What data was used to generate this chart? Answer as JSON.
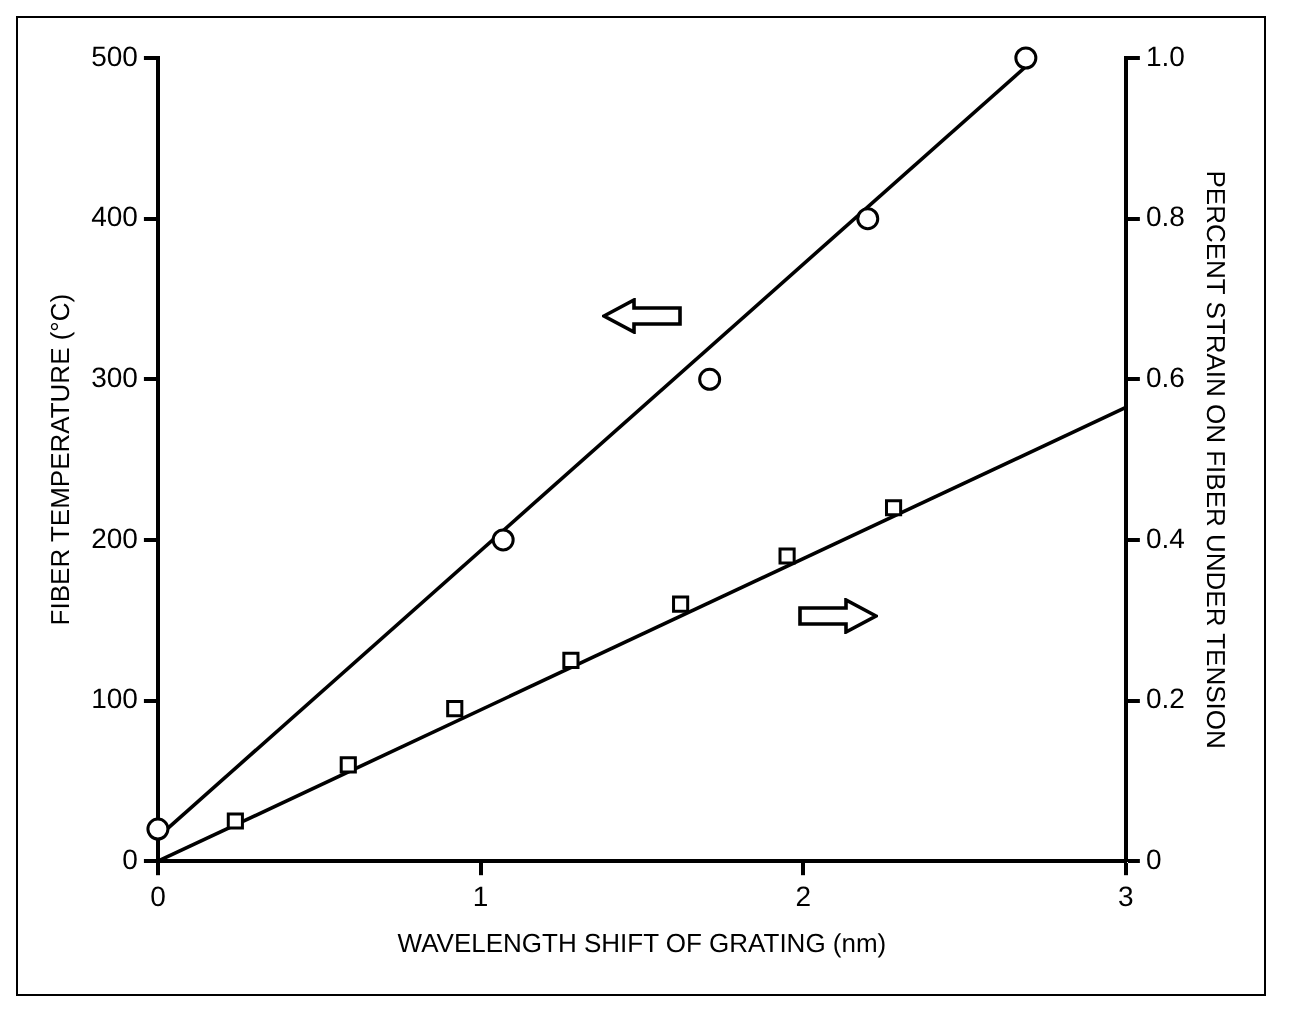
{
  "chart_data": {
    "type": "scatter",
    "xlabel": "WAVELENGTH SHIFT OF GRATING (nm)",
    "ylabel": "FIBER TEMPERATURE (°C)",
    "y2label": "PERCENT STRAIN ON FIBER UNDER TENSION",
    "xlim": [
      0,
      3
    ],
    "xticks": [
      0,
      1,
      2,
      3
    ],
    "ylim": [
      0,
      500
    ],
    "yticks": [
      0,
      100,
      200,
      300,
      400,
      500
    ],
    "y2lim": [
      0,
      1
    ],
    "y2ticks": [
      0,
      0.2,
      0.4,
      0.6,
      0.8,
      {
        "value": 1,
        "label": "1.0"
      }
    ],
    "grid": false,
    "legend": false,
    "series": [
      {
        "type": "scatter",
        "marker": "circle",
        "color": "#000000",
        "x": [
          0,
          1.07,
          1.71,
          2.2,
          2.69
        ],
        "values": [
          20,
          200,
          300,
          400,
          500
        ]
      },
      {
        "type": "line",
        "marker": "none",
        "color": "#000000",
        "x": [
          0,
          2.72
        ],
        "values": [
          15,
          500
        ]
      },
      {
        "type": "scatter",
        "marker": "square",
        "axis": "y2",
        "color": "#000000",
        "x": [
          0.24,
          0.59,
          0.92,
          1.28,
          1.62,
          1.95,
          2.28
        ],
        "values": [
          0.05,
          0.12,
          0.19,
          0.25,
          0.32,
          0.38,
          0.44
        ]
      },
      {
        "type": "line",
        "marker": "none",
        "axis": "y2",
        "color": "#000000",
        "x": [
          0,
          3
        ],
        "values": [
          0,
          0.565
        ]
      }
    ]
  }
}
